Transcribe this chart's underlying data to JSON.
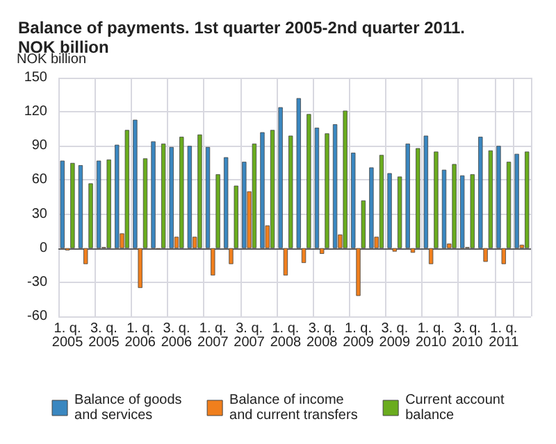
{
  "chart_data": {
    "type": "bar",
    "title": "Balance of payments. 1st quarter 2005-2nd quarter 2011.\nNOK billion",
    "ylabel": "NOK billion",
    "categories": [
      "1. q.\n2005",
      null,
      "3. q.\n2005",
      null,
      "1. q.\n2006",
      null,
      "3. q.\n2006",
      null,
      "1. q.\n2007",
      null,
      "3. q.\n2007",
      null,
      "1. q.\n2008",
      null,
      "3. q.\n2008",
      null,
      "1. q.\n2009",
      null,
      "3. q.\n2009",
      null,
      "1. q.\n2010",
      null,
      "3. q.\n2010",
      null,
      "1. q.\n2011",
      null
    ],
    "series": [
      {
        "name": "Balance of goods\nand services",
        "color": "#3a87c0",
        "values": [
          77,
          73,
          77,
          91,
          113,
          94,
          89,
          90,
          89,
          80,
          76,
          102,
          124,
          132,
          106,
          109,
          84,
          71,
          66,
          92,
          99,
          69,
          64,
          98,
          90,
          83
        ]
      },
      {
        "name": "Balance of income\nand current transfers",
        "color": "#f07f1d",
        "values": [
          -2,
          -14,
          1,
          13,
          -35,
          -1,
          10,
          10,
          -24,
          -14,
          50,
          20,
          -24,
          -13,
          -5,
          12,
          -42,
          10,
          -3,
          -4,
          -14,
          4,
          1,
          -12,
          -14,
          3
        ]
      },
      {
        "name": "Current account\nbalance",
        "color": "#6aac1e",
        "values": [
          75,
          57,
          78,
          104,
          79,
          92,
          98,
          100,
          65,
          55,
          92,
          104,
          99,
          118,
          101,
          121,
          42,
          82,
          63,
          88,
          85,
          74,
          65,
          86,
          76,
          85
        ]
      }
    ],
    "ylim": [
      -60,
      150
    ],
    "yticks": [
      -60,
      -30,
      0,
      30,
      60,
      90,
      120,
      150
    ],
    "grid": true,
    "legend": "bottom"
  }
}
